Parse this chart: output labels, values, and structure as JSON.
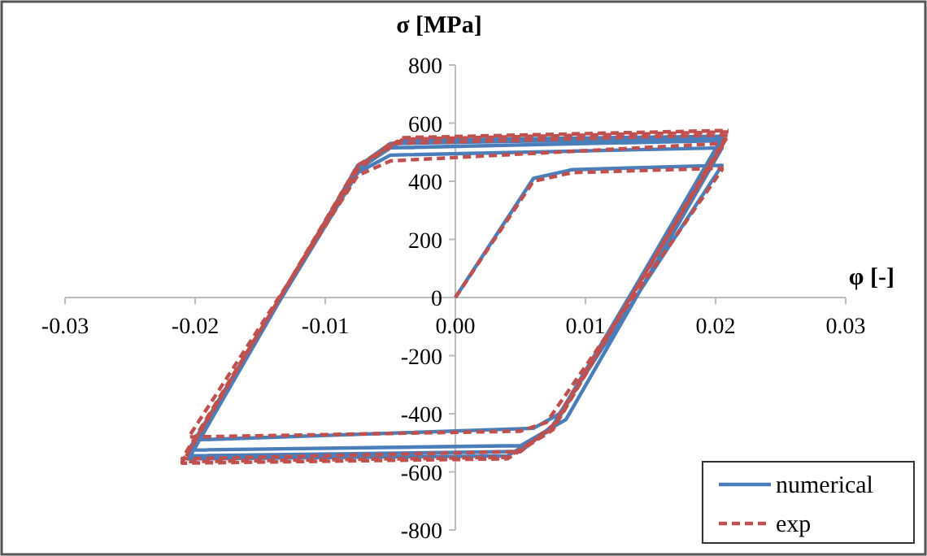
{
  "chart_data": {
    "type": "line",
    "xlabel": "φ [-]",
    "ylabel": "σ [MPa]",
    "xlim": [
      -0.03,
      0.03
    ],
    "ylim": [
      -800,
      800
    ],
    "xticks": [
      -0.03,
      -0.02,
      -0.01,
      {
        "value": 0,
        "label": "0.00"
      },
      0.01,
      0.02,
      0.03
    ],
    "yticks": [
      -800,
      -600,
      -400,
      -200,
      0,
      200,
      400,
      600,
      800
    ],
    "grid": false,
    "legend": "bottom right",
    "marker": "none",
    "series": [
      {
        "name": "numerical",
        "color": "#4a7ebb",
        "line_style": "solid",
        "x": [
          0,
          0.006,
          0.009,
          0.0205,
          0.008,
          0.006,
          -0.02,
          -0.0075,
          -0.005,
          0.0205,
          0.0085,
          0.005,
          -0.0205,
          -0.0075,
          -0.005,
          0.0205,
          0.0075,
          0.005,
          -0.0205,
          -0.0075,
          -0.005,
          0.0205,
          0.0075,
          0.004,
          -0.0205,
          -0.0075,
          -0.004,
          0.0205
        ],
        "values": [
          0,
          410,
          440,
          455,
          -400,
          -450,
          -490,
          430,
          490,
          515,
          -420,
          -510,
          -525,
          440,
          515,
          540,
          -440,
          -530,
          -545,
          450,
          530,
          550,
          -450,
          -545,
          -555,
          455,
          540,
          555
        ]
      },
      {
        "name": "exp",
        "color": "#c0504d",
        "line_style": "dashed",
        "x": [
          0,
          0.006,
          0.009,
          0.0205,
          0.0205,
          0.007,
          0.005,
          -0.0205,
          -0.0075,
          -0.005,
          0.0205,
          0.0205,
          0.0075,
          0.005,
          -0.021,
          -0.0075,
          -0.005,
          0.021,
          0.0075,
          0.004,
          -0.021,
          -0.0075,
          -0.004,
          0.021,
          0.0075,
          0.004,
          -0.021,
          -0.0075,
          -0.004,
          0.021
        ],
        "values": [
          0,
          400,
          430,
          445,
          440,
          -430,
          -460,
          -480,
          420,
          470,
          530,
          520,
          -440,
          -530,
          -555,
          440,
          530,
          560,
          -450,
          -550,
          -565,
          450,
          545,
          570,
          -455,
          -555,
          -570,
          455,
          550,
          575
        ]
      }
    ]
  }
}
